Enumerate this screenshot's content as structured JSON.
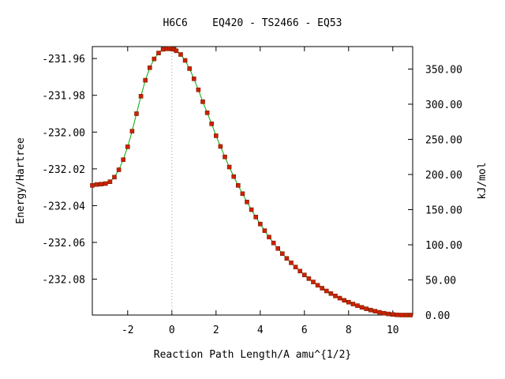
{
  "chart_data": {
    "type": "line",
    "title": "H6C6    EQ420 - TS2466 - EQ53",
    "xlabel": "Reaction Path Length/A amu^{1/2}",
    "ylabel": "Energy/Hartree",
    "y2label": "kJ/mol",
    "xlim": [
      -3.6,
      10.9
    ],
    "ylim": [
      -232.0995,
      -231.9535
    ],
    "y2lim": [
      0.0,
      381.98
    ],
    "x_ticks": [
      -2,
      0,
      2,
      4,
      6,
      8,
      10
    ],
    "x_tick_labels": [
      "-2",
      "0",
      "2",
      "4",
      "6",
      "8",
      "10"
    ],
    "y_ticks": [
      -231.96,
      -231.98,
      -232.0,
      -232.02,
      -232.04,
      -232.06,
      -232.08
    ],
    "y_tick_labels": [
      "-231.96",
      "-231.98",
      "-232.00",
      "-232.02",
      "-232.04",
      "-232.06",
      "-232.08"
    ],
    "y2_ticks": [
      350,
      300,
      250,
      200,
      150,
      100,
      50,
      0
    ],
    "y2_tick_labels": [
      "350.00",
      "300.00",
      "250.00",
      "200.00",
      "150.00",
      "100.00",
      "50.00",
      "0.00"
    ],
    "ts_marker_x": 0,
    "grid": false,
    "colors": {
      "line": "#00aa00",
      "points": "#cc2200",
      "marker_line": "#999999"
    },
    "series": [
      {
        "x": [
          -3.6,
          -3.4,
          -3.2,
          -3.0,
          -2.8,
          -2.6,
          -2.4,
          -2.2,
          -2.0,
          -1.8,
          -1.6,
          -1.4,
          -1.2,
          -1.0,
          -0.8,
          -0.6,
          -0.4,
          -0.2,
          -0.1,
          0.0,
          0.1,
          0.2,
          0.4,
          0.6,
          0.8,
          1.0,
          1.2,
          1.4,
          1.6,
          1.8,
          2.0,
          2.2,
          2.4,
          2.6,
          2.8,
          3.0,
          3.2,
          3.4,
          3.6,
          3.8,
          4.0,
          4.2,
          4.4,
          4.6,
          4.8,
          5.0,
          5.2,
          5.4,
          5.6,
          5.8,
          6.0,
          6.2,
          6.4,
          6.6,
          6.8,
          7.0,
          7.2,
          7.4,
          7.6,
          7.8,
          8.0,
          8.2,
          8.4,
          8.6,
          8.8,
          9.0,
          9.2,
          9.4,
          9.6,
          9.8,
          10.0,
          10.2,
          10.4,
          10.6,
          10.8
        ],
        "y": [
          -232.029,
          -232.0285,
          -232.0283,
          -232.028,
          -232.027,
          -232.0245,
          -232.0205,
          -232.015,
          -232.008,
          -231.9995,
          -231.99,
          -231.9805,
          -231.9718,
          -231.965,
          -231.9602,
          -231.957,
          -231.955,
          -231.9547,
          -231.9546,
          -231.9548,
          -231.955,
          -231.9558,
          -231.9578,
          -231.961,
          -231.9655,
          -231.971,
          -231.977,
          -231.9835,
          -231.9895,
          -231.9955,
          -232.002,
          -232.0078,
          -232.0135,
          -232.019,
          -232.0242,
          -232.029,
          -232.0335,
          -232.038,
          -232.0422,
          -232.0462,
          -232.05,
          -232.0536,
          -232.0571,
          -232.0603,
          -232.0633,
          -232.0661,
          -232.0687,
          -232.0711,
          -232.0734,
          -232.0756,
          -232.0777,
          -232.0797,
          -232.0815,
          -232.0833,
          -232.0849,
          -232.0864,
          -232.0878,
          -232.0891,
          -232.0903,
          -232.0915,
          -232.0925,
          -232.0935,
          -232.0944,
          -232.0953,
          -232.0961,
          -232.0968,
          -232.0974,
          -232.098,
          -232.0985,
          -232.0989,
          -232.0992,
          -232.0994,
          -232.0995,
          -232.0995,
          -232.0995
        ]
      }
    ]
  }
}
